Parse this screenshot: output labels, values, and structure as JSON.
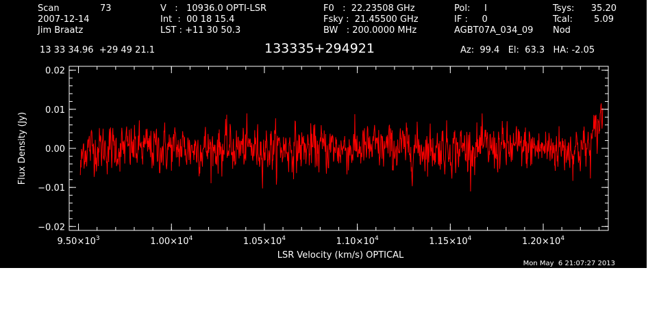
{
  "header": {
    "col1": {
      "scan_label": "Scan",
      "scan_value": "73",
      "date": "2007-12-14",
      "observer": "Jim Braatz"
    },
    "col2": {
      "v_line": "V   :   10936.0 OPTI-LSR",
      "int_line": "Int  :  00 18 15.4",
      "lst_line": "LST : +11 30 50.3"
    },
    "col3": {
      "f0_line": "F0   :  22.23508 GHz",
      "fsky_line": "Fsky :  21.45500 GHz",
      "bw_line": "BW   : 200.0000 MHz"
    },
    "col4": {
      "pol_line": "Pol:     I",
      "if_line": "IF :     0",
      "proj_line": "AGBT07A_034_09"
    },
    "col5": {
      "tsys_label": "Tsys:",
      "tsys_value": "35.20",
      "tcal_label": "Tcal:",
      "tcal_value": "5.09",
      "mode": "Nod"
    },
    "coords": "13 33 34.96  +29 49 21.1",
    "source": "133335+294921",
    "pointing": "Az:  99.4   El:  63.3   HA: -2.05",
    "timestamp": "Mon May  6 21:07:27 2013"
  },
  "chart_data": {
    "type": "line",
    "xlabel": "LSR Velocity (km/s) OPTICAL",
    "ylabel": "Flux Density (Jy)",
    "xlim": [
      9450,
      12350
    ],
    "ylim": [
      -0.021,
      0.021
    ],
    "grid": false,
    "x_ticks": [
      {
        "value": 9500,
        "mantissa": "9.50",
        "exp": "3"
      },
      {
        "value": 10000,
        "mantissa": "1.00",
        "exp": "4"
      },
      {
        "value": 10500,
        "mantissa": "1.05",
        "exp": "4"
      },
      {
        "value": 11000,
        "mantissa": "1.10",
        "exp": "4"
      },
      {
        "value": 11500,
        "mantissa": "1.15",
        "exp": "4"
      },
      {
        "value": 12000,
        "mantissa": "1.20",
        "exp": "4"
      }
    ],
    "x_minor_step": 100,
    "y_ticks": [
      {
        "value": -0.02,
        "label": "−0.02"
      },
      {
        "value": -0.01,
        "label": "−0.01"
      },
      {
        "value": 0.0,
        "label": "0.00"
      },
      {
        "value": 0.01,
        "label": "0.01"
      },
      {
        "value": 0.02,
        "label": "0.02"
      }
    ],
    "y_minor_step": 0.002,
    "series": [
      {
        "color": "#ff0000",
        "x_start": 9510,
        "x_end": 12320,
        "n_points": 1400,
        "noise_rms": 0.0042,
        "approx_extremes": {
          "min": -0.0125,
          "max": 0.016
        }
      }
    ]
  }
}
